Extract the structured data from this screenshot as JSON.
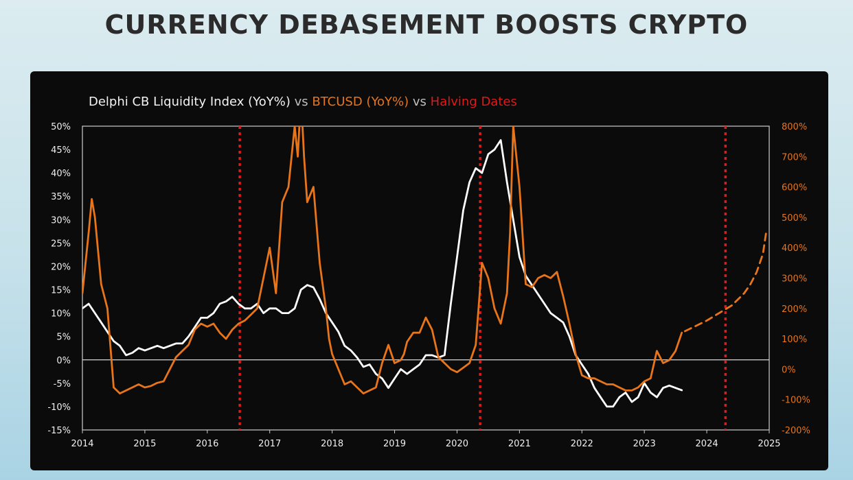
{
  "title": "CURRENCY DEBASEMENT BOOSTS CRYPTO",
  "legend": {
    "part1": "Delphi CB Liquidity Index (YoY%)",
    "sep1": " vs ",
    "part2": "BTCUSD (YoY%)",
    "sep2": " vs ",
    "part3": "Halving Dates"
  },
  "colors": {
    "liquidity": "#ffffff",
    "btc": "#e8751a",
    "halving": "#e01919",
    "left_axis_text": "#f0f0f0",
    "right_axis_text": "#e8751a"
  },
  "chart_data": {
    "type": "line",
    "title": "Delphi CB Liquidity Index (YoY%) vs BTCUSD (YoY%) vs Halving Dates",
    "xlim": [
      2014,
      2025
    ],
    "x_ticks": [
      "2014",
      "2015",
      "2016",
      "2017",
      "2018",
      "2019",
      "2020",
      "2021",
      "2022",
      "2023",
      "2024",
      "2025"
    ],
    "y_left": {
      "lim": [
        -15,
        50
      ],
      "ticks": [
        "50%",
        "45%",
        "40%",
        "35%",
        "30%",
        "25%",
        "20%",
        "15%",
        "10%",
        "5%",
        "0%",
        "-5%",
        "-10%",
        "-15%"
      ]
    },
    "y_right": {
      "lim": [
        -200,
        800
      ],
      "ticks": [
        "800%",
        "700%",
        "600%",
        "500%",
        "400%",
        "300%",
        "200%",
        "100%",
        "0%",
        "-100%",
        "-200%"
      ]
    },
    "grid": false,
    "zero_line": true,
    "halving_dates": [
      2016.52,
      2020.37,
      2024.3
    ],
    "series": [
      {
        "name": "Delphi CB Liquidity Index (YoY%)",
        "axis": "left",
        "x": [
          2014.0,
          2014.1,
          2014.2,
          2014.3,
          2014.4,
          2014.5,
          2014.6,
          2014.7,
          2014.8,
          2014.9,
          2015.0,
          2015.1,
          2015.2,
          2015.3,
          2015.4,
          2015.5,
          2015.6,
          2015.7,
          2015.8,
          2015.9,
          2016.0,
          2016.1,
          2016.2,
          2016.3,
          2016.4,
          2016.5,
          2016.6,
          2016.7,
          2016.8,
          2016.9,
          2017.0,
          2017.1,
          2017.2,
          2017.3,
          2017.4,
          2017.5,
          2017.6,
          2017.7,
          2017.8,
          2017.9,
          2018.0,
          2018.1,
          2018.2,
          2018.3,
          2018.4,
          2018.5,
          2018.6,
          2018.7,
          2018.8,
          2018.9,
          2019.0,
          2019.1,
          2019.2,
          2019.3,
          2019.4,
          2019.5,
          2019.6,
          2019.7,
          2019.8,
          2019.9,
          2020.0,
          2020.1,
          2020.2,
          2020.3,
          2020.4,
          2020.5,
          2020.6,
          2020.7,
          2020.8,
          2020.9,
          2021.0,
          2021.1,
          2021.2,
          2021.3,
          2021.4,
          2021.5,
          2021.6,
          2021.7,
          2021.8,
          2021.9,
          2022.0,
          2022.1,
          2022.2,
          2022.3,
          2022.4,
          2022.5,
          2022.6,
          2022.7,
          2022.8,
          2022.9,
          2023.0,
          2023.1,
          2023.2,
          2023.3,
          2023.4,
          2023.5,
          2023.6
        ],
        "y": [
          11,
          12,
          10,
          8,
          6,
          4,
          3,
          1,
          1.5,
          2.5,
          2,
          2.5,
          3,
          2.5,
          3,
          3.5,
          3.5,
          5,
          7,
          9,
          9,
          10,
          12,
          12.5,
          13.5,
          12,
          11,
          11,
          12,
          10,
          11,
          11,
          10,
          10,
          11,
          15,
          16,
          15.5,
          13,
          10,
          8,
          6,
          3,
          2,
          0.5,
          -1.5,
          -1,
          -3,
          -4,
          -6,
          -4,
          -2,
          -3,
          -2,
          -1,
          1,
          1,
          0.5,
          1,
          12,
          22,
          32,
          38,
          41,
          40,
          44,
          45,
          47,
          38,
          30,
          22,
          18,
          16,
          14,
          12,
          10,
          9,
          8,
          5,
          1,
          -1,
          -3,
          -6,
          -8,
          -10,
          -10,
          -8,
          -7,
          -9,
          -8,
          -5,
          -7,
          -8,
          -6,
          -5.5,
          -6,
          -6.5
        ]
      },
      {
        "name": "BTCUSD (YoY%)",
        "axis": "right",
        "x": [
          2014.0,
          2014.1,
          2014.15,
          2014.2,
          2014.3,
          2014.4,
          2014.5,
          2014.6,
          2014.7,
          2014.8,
          2014.9,
          2015.0,
          2015.1,
          2015.2,
          2015.3,
          2015.4,
          2015.5,
          2015.6,
          2015.7,
          2015.8,
          2015.9,
          2016.0,
          2016.1,
          2016.2,
          2016.3,
          2016.4,
          2016.5,
          2016.6,
          2016.7,
          2016.8,
          2016.9,
          2017.0,
          2017.1,
          2017.2,
          2017.3,
          2017.4,
          2017.45,
          2017.5,
          2017.55,
          2017.6,
          2017.7,
          2017.8,
          2017.9,
          2017.95,
          2018.0,
          2018.1,
          2018.2,
          2018.3,
          2018.4,
          2018.5,
          2018.6,
          2018.7,
          2018.8,
          2018.9,
          2019.0,
          2019.1,
          2019.15,
          2019.2,
          2019.3,
          2019.4,
          2019.5,
          2019.6,
          2019.7,
          2019.8,
          2019.9,
          2020.0,
          2020.1,
          2020.2,
          2020.3,
          2020.4,
          2020.5,
          2020.6,
          2020.7,
          2020.8,
          2020.85,
          2020.9,
          2021.0,
          2021.1,
          2021.2,
          2021.3,
          2021.4,
          2021.5,
          2021.6,
          2021.7,
          2021.8,
          2021.9,
          2022.0,
          2022.1,
          2022.2,
          2022.3,
          2022.4,
          2022.5,
          2022.6,
          2022.7,
          2022.8,
          2022.9,
          2023.0,
          2023.1,
          2023.2,
          2023.3,
          2023.4,
          2023.5,
          2023.6
        ],
        "y": [
          250,
          450,
          560,
          500,
          280,
          200,
          -60,
          -80,
          -70,
          -60,
          -50,
          -60,
          -55,
          -45,
          -40,
          0,
          40,
          60,
          80,
          130,
          150,
          140,
          150,
          120,
          100,
          130,
          150,
          160,
          180,
          200,
          300,
          400,
          250,
          550,
          600,
          800,
          700,
          900,
          700,
          550,
          600,
          350,
          200,
          100,
          50,
          0,
          -50,
          -40,
          -60,
          -80,
          -70,
          -60,
          20,
          80,
          20,
          30,
          50,
          90,
          120,
          120,
          170,
          130,
          40,
          20,
          0,
          -10,
          5,
          20,
          80,
          350,
          300,
          200,
          150,
          250,
          450,
          800,
          600,
          280,
          270,
          300,
          310,
          300,
          320,
          240,
          150,
          50,
          -20,
          -30,
          -30,
          -40,
          -50,
          -50,
          -60,
          -70,
          -70,
          -60,
          -40,
          -30,
          60,
          20,
          30,
          60,
          120
        ]
      },
      {
        "name": "BTCUSD projection",
        "axis": "right",
        "dashed": true,
        "x": [
          2023.65,
          2023.8,
          2024.0,
          2024.2,
          2024.4,
          2024.6,
          2024.7,
          2024.8,
          2024.9,
          2024.95
        ],
        "y": [
          125,
          140,
          160,
          185,
          210,
          250,
          280,
          320,
          380,
          450
        ]
      }
    ]
  }
}
